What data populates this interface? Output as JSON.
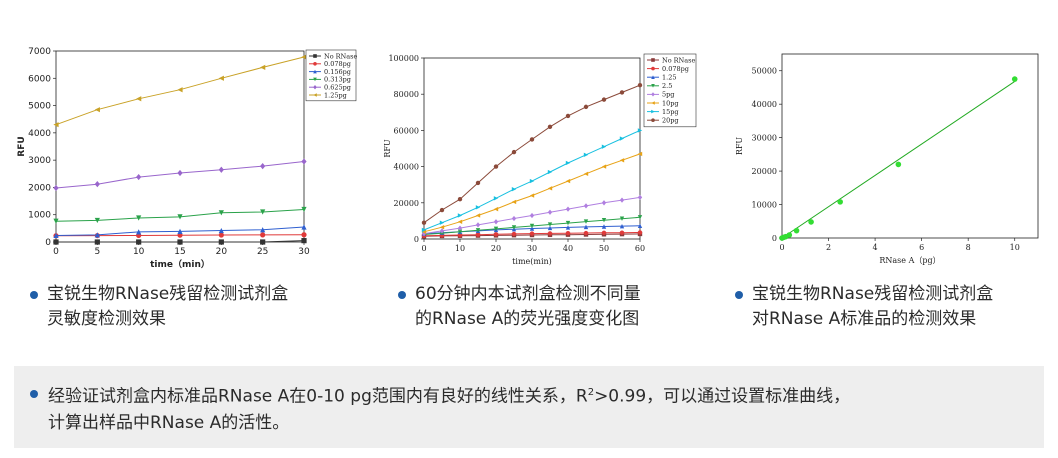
{
  "chart_data": [
    {
      "type": "line",
      "xlabel": "time（min）",
      "ylabel": "RFU",
      "xlim": [
        0,
        30
      ],
      "ylim": [
        0,
        7000
      ],
      "xticks": [
        0,
        5,
        10,
        15,
        20,
        25,
        30
      ],
      "yticks": [
        0,
        1000,
        2000,
        3000,
        4000,
        5000,
        6000,
        7000
      ],
      "x": [
        0,
        5,
        10,
        15,
        20,
        25,
        30
      ],
      "legend_position": "top-right",
      "series": [
        {
          "name": "No RNase",
          "color": "#333333",
          "marker": "square",
          "values": [
            0,
            0,
            0,
            0,
            0,
            0,
            50
          ]
        },
        {
          "name": "0.078pg",
          "color": "#e03a3a",
          "marker": "circle",
          "values": [
            230,
            235,
            240,
            250,
            255,
            260,
            265
          ]
        },
        {
          "name": "0.156pg",
          "color": "#2f5fd0",
          "marker": "triangle-up",
          "values": [
            240,
            260,
            370,
            390,
            420,
            450,
            550
          ]
        },
        {
          "name": "0.313pg",
          "color": "#2aa24a",
          "marker": "triangle-down",
          "values": [
            760,
            790,
            880,
            920,
            1070,
            1100,
            1190
          ]
        },
        {
          "name": "0.625pg",
          "color": "#9966cc",
          "marker": "diamond",
          "values": [
            1980,
            2120,
            2380,
            2530,
            2650,
            2780,
            2950
          ]
        },
        {
          "name": "1.25pg",
          "color": "#c9a227",
          "marker": "triangle-left",
          "values": [
            4300,
            4850,
            5250,
            5580,
            6000,
            6400,
            6780
          ]
        }
      ]
    },
    {
      "type": "line",
      "xlabel": "time(min)",
      "ylabel": "RFU",
      "xlim": [
        0,
        60
      ],
      "ylim": [
        0,
        100000
      ],
      "xticks": [
        0,
        10,
        20,
        30,
        40,
        50,
        60
      ],
      "yticks": [
        0,
        20000,
        40000,
        60000,
        80000,
        100000
      ],
      "x": [
        0,
        5,
        10,
        15,
        20,
        25,
        30,
        35,
        40,
        45,
        50,
        55,
        60
      ],
      "legend_position": "top-right",
      "series": [
        {
          "name": "No RNase",
          "color": "#8b3a3a",
          "marker": "square",
          "values": [
            1500,
            1700,
            1800,
            1900,
            2000,
            2100,
            2200,
            2300,
            2400,
            2500,
            2600,
            2700,
            2800
          ]
        },
        {
          "name": "0.078pg",
          "color": "#e03a3a",
          "marker": "circle",
          "values": [
            1800,
            2000,
            2200,
            2400,
            2600,
            2800,
            3000,
            3100,
            3200,
            3300,
            3400,
            3500,
            3600
          ]
        },
        {
          "name": "1.25",
          "color": "#2f5fd0",
          "marker": "triangle-up",
          "values": [
            3000,
            3500,
            4000,
            4500,
            5000,
            5400,
            5800,
            6100,
            6400,
            6700,
            6900,
            7100,
            7300
          ]
        },
        {
          "name": "2.5",
          "color": "#2aa24a",
          "marker": "triangle-down",
          "values": [
            2500,
            3200,
            4000,
            4800,
            5600,
            6400,
            7200,
            8000,
            8800,
            9600,
            10400,
            11200,
            12000
          ]
        },
        {
          "name": "5pg",
          "color": "#b07fe0",
          "marker": "diamond",
          "values": [
            3000,
            4500,
            6000,
            7800,
            9500,
            11300,
            13000,
            14800,
            16500,
            18300,
            20000,
            21500,
            23000
          ]
        },
        {
          "name": "10pg",
          "color": "#e8a317",
          "marker": "triangle-left",
          "values": [
            4000,
            6500,
            9500,
            13000,
            16500,
            20500,
            24000,
            28000,
            32000,
            36000,
            40000,
            43500,
            47000
          ]
        },
        {
          "name": "15pg",
          "color": "#18c0e0",
          "marker": "triangle-right",
          "values": [
            5000,
            9000,
            13000,
            17500,
            22500,
            27500,
            32000,
            37000,
            42000,
            46500,
            51000,
            55500,
            60000
          ]
        },
        {
          "name": "20pg",
          "color": "#8b4a3a",
          "marker": "circle",
          "values": [
            9000,
            16000,
            22000,
            31000,
            40000,
            48000,
            55000,
            62000,
            68000,
            73000,
            77000,
            81000,
            85000
          ]
        }
      ]
    },
    {
      "type": "scatter",
      "xlabel": "RNase A（pg）",
      "ylabel": "RFU",
      "xlim": [
        0,
        11
      ],
      "ylim": [
        0,
        55000
      ],
      "xticks": [
        0,
        2,
        4,
        6,
        8,
        10
      ],
      "yticks": [
        0,
        10000,
        20000,
        30000,
        40000,
        50000
      ],
      "fit_line": true,
      "series": [
        {
          "color": "#33dd33",
          "x": [
            0,
            0.078,
            0.156,
            0.313,
            0.625,
            1.25,
            2.5,
            5,
            10
          ],
          "y": [
            0,
            200,
            400,
            900,
            2200,
            4800,
            10800,
            22000,
            47500
          ]
        }
      ]
    }
  ],
  "captions": {
    "c1_line1": "宝锐生物RNase残留检测试剂盒",
    "c1_line2": "灵敏度检测效果",
    "c2_line1": "60分钟内本试剂盒检测不同量",
    "c2_line2": "的RNase A的荧光强度变化图",
    "c3_line1": "宝锐生物RNase残留检测试剂盒",
    "c3_line2": "对RNase A标准品的检测效果"
  },
  "footer": {
    "part1": "经验证试剂盒内标准品RNase A在0-10 pg范围内有良好的线性关系，R",
    "sup": "2",
    "part2": ">0.99，可以通过设置标准曲线，",
    "line2": "计算出样品中RNase A的活性。"
  },
  "colors": {
    "accent_dot": "#1f5ea8",
    "footer_bg": "#eeeeee"
  }
}
